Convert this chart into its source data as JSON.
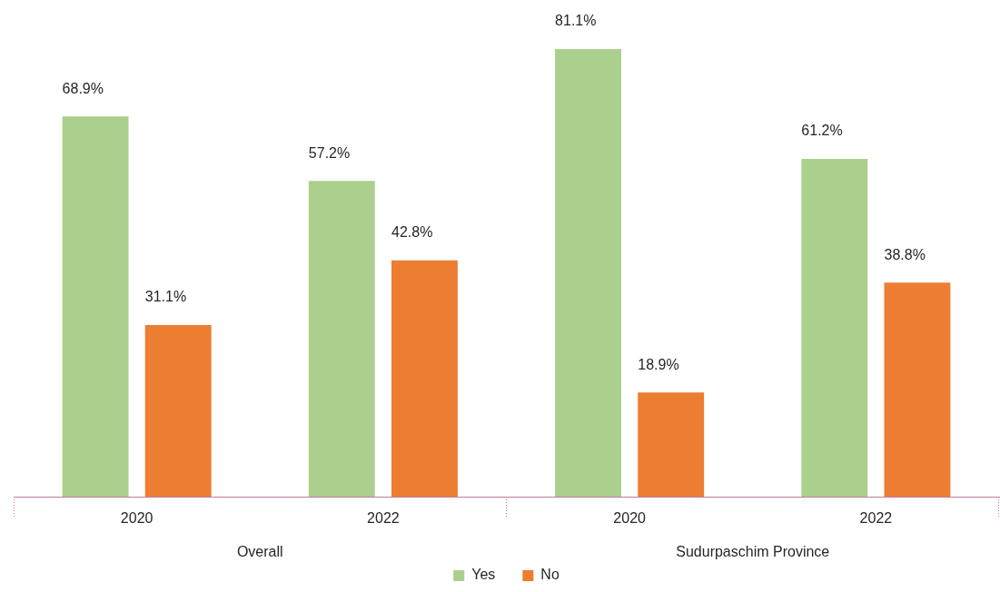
{
  "chart_data": {
    "type": "bar",
    "categories": [
      "2020",
      "2022",
      "2020",
      "2022"
    ],
    "series": [
      {
        "name": "Yes",
        "color": "#abd08d",
        "values": [
          68.9,
          57.2,
          81.1,
          61.2
        ],
        "value_labels": [
          "68.9%",
          "57.2%",
          "81.1%",
          "61.2%"
        ]
      },
      {
        "name": "No",
        "color": "#ed7d31",
        "values": [
          31.1,
          42.8,
          18.9,
          38.8
        ],
        "value_labels": [
          "31.1%",
          "42.8%",
          "18.9%",
          "38.8%"
        ]
      }
    ],
    "annotations": [
      "Overall",
      "Sudurpaschim Province"
    ],
    "legend": "bottom"
  }
}
